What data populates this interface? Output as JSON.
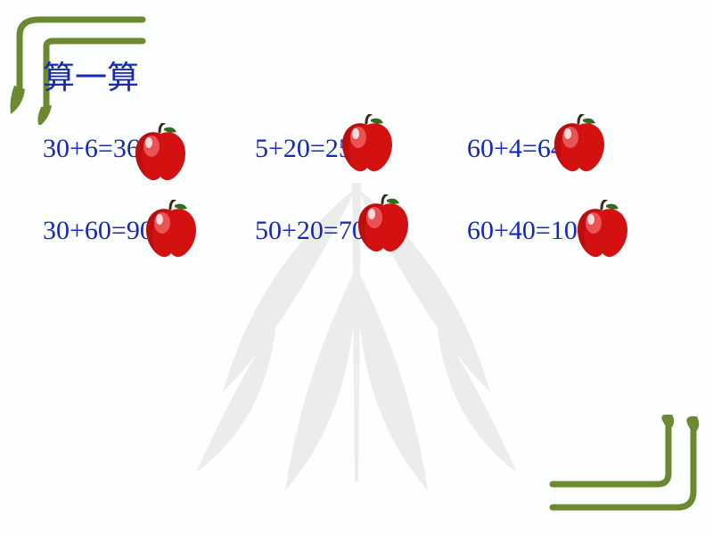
{
  "title": "算一算",
  "title_color": "#1628b8",
  "equation_color": "#1628b8",
  "equation_fontsize": 30,
  "background_color": "#fdfeff",
  "corner_color": "#6b8a2f",
  "leaf_watermark_color": "#6a7d5a",
  "apple": {
    "body_color": "#d41111",
    "highlight_color": "#f06a6a",
    "shadow_color": "#8a0b0b",
    "stem_color": "#3a2a18",
    "leaf_color": "#2e6b1e"
  },
  "rows": [
    [
      {
        "expr": "30+6=",
        "ans": "36",
        "apple_dx": 98,
        "apple_dy": -12,
        "show_ans_peek": true
      },
      {
        "expr": "5+20=",
        "ans": "25",
        "apple_dx": 92,
        "apple_dy": -22
      },
      {
        "expr": "60+4=",
        "ans": "64",
        "apple_dx": 92,
        "apple_dy": -22
      }
    ],
    [
      {
        "expr": "30+60=",
        "ans": "90",
        "apple_dx": 110,
        "apple_dy": -18
      },
      {
        "expr": "50+20=",
        "ans": "70",
        "apple_dx": 110,
        "apple_dy": -24
      },
      {
        "expr": "60+40=",
        "ans": "100",
        "apple_dx": 118,
        "apple_dy": -18
      }
    ]
  ]
}
